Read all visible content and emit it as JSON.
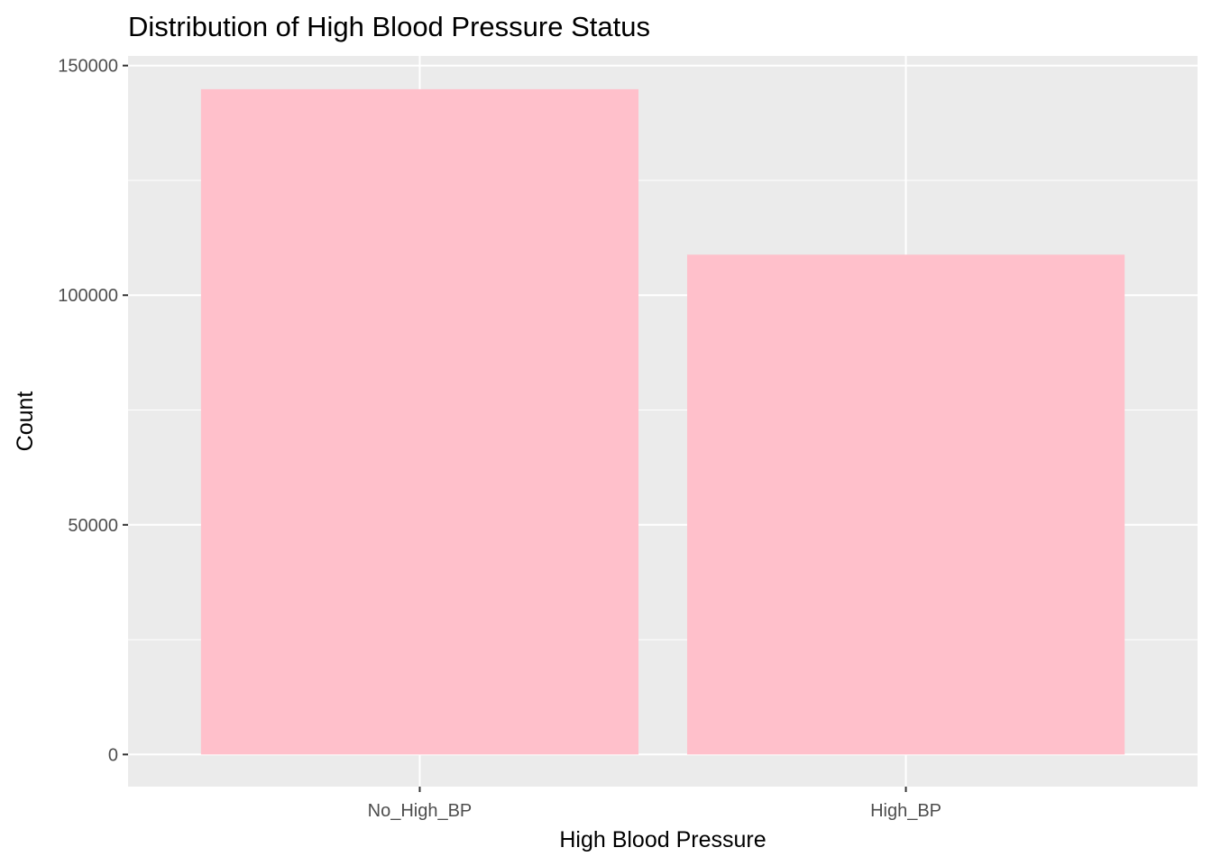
{
  "chart_data": {
    "type": "bar",
    "title": "Distribution of High Blood Pressure Status",
    "xlabel": "High Blood Pressure",
    "ylabel": "Count",
    "categories": [
      "No_High_BP",
      "High_BP"
    ],
    "values": [
      144851,
      108829
    ],
    "ylim": [
      -7000,
      152100
    ],
    "yticks": [
      0,
      50000,
      100000,
      150000
    ],
    "ytick_labels": [
      "0",
      "50000",
      "100000",
      "150000"
    ],
    "grid": true,
    "legend": "none",
    "colors": {
      "bar": "#ffc0cb",
      "panel": "#ebebeb",
      "grid": "#ffffff",
      "tick": "#333333"
    }
  }
}
